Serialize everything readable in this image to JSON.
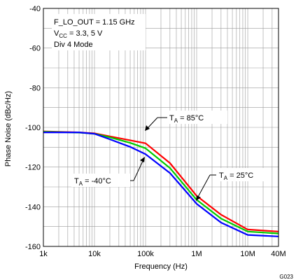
{
  "chart_data": {
    "type": "line",
    "x_scale": "log",
    "xlabel": "Frequency (Hz)",
    "ylabel": "Phase Noise (dBc/Hz)",
    "xlim": [
      1000,
      40000000
    ],
    "ylim": [
      -160,
      -40
    ],
    "x_ticks": [
      {
        "value": 1000,
        "label": "1k"
      },
      {
        "value": 10000,
        "label": "10k"
      },
      {
        "value": 100000,
        "label": "100k"
      },
      {
        "value": 1000000,
        "label": "1M"
      },
      {
        "value": 10000000,
        "label": "10M"
      },
      {
        "value": 40000000,
        "label": "40M"
      }
    ],
    "y_ticks": [
      -40,
      -60,
      -80,
      -100,
      -120,
      -140,
      -160
    ],
    "conditions": [
      "F_LO_OUT = 1.15 GHz",
      "Div 4 Mode"
    ],
    "vcc": {
      "base": "V",
      "sub": "CC",
      "rest": " = 3.3, 5 V"
    },
    "figure_code": "G023",
    "grid": true,
    "series": [
      {
        "name": "T_A = 85°C",
        "color": "#ff0000",
        "points": [
          [
            1000,
            -102
          ],
          [
            5000,
            -102.5
          ],
          [
            10000,
            -103
          ],
          [
            20000,
            -104.5
          ],
          [
            50000,
            -106.5
          ],
          [
            100000,
            -108
          ],
          [
            300000,
            -118
          ],
          [
            1000000,
            -134.5
          ],
          [
            3000000,
            -144
          ],
          [
            10000000,
            -151.5
          ],
          [
            40000000,
            -152.5
          ]
        ]
      },
      {
        "name": "T_A = 25°C",
        "color": "#00cc00",
        "points": [
          [
            1000,
            -102.2
          ],
          [
            5000,
            -102.6
          ],
          [
            10000,
            -103.2
          ],
          [
            20000,
            -105
          ],
          [
            50000,
            -107.8
          ],
          [
            100000,
            -110.5
          ],
          [
            300000,
            -120.5
          ],
          [
            1000000,
            -136.5
          ],
          [
            3000000,
            -146
          ],
          [
            10000000,
            -152.5
          ],
          [
            40000000,
            -153.5
          ]
        ]
      },
      {
        "name": "T_A = -40°C",
        "color": "#0000ff",
        "points": [
          [
            1000,
            -102.5
          ],
          [
            5000,
            -102.5
          ],
          [
            10000,
            -103.2
          ],
          [
            20000,
            -106
          ],
          [
            50000,
            -109.8
          ],
          [
            100000,
            -113.5
          ],
          [
            300000,
            -123
          ],
          [
            1000000,
            -138.5
          ],
          [
            3000000,
            -148
          ],
          [
            10000000,
            -154.2
          ],
          [
            40000000,
            -155
          ]
        ]
      }
    ],
    "annotations": [
      {
        "base": "T",
        "sub": "A",
        "rest": " = 85°C"
      },
      {
        "base": "T",
        "sub": "A",
        "rest": " = 25°C"
      },
      {
        "base": "T",
        "sub": "A",
        "rest": " = -40°C"
      }
    ]
  }
}
